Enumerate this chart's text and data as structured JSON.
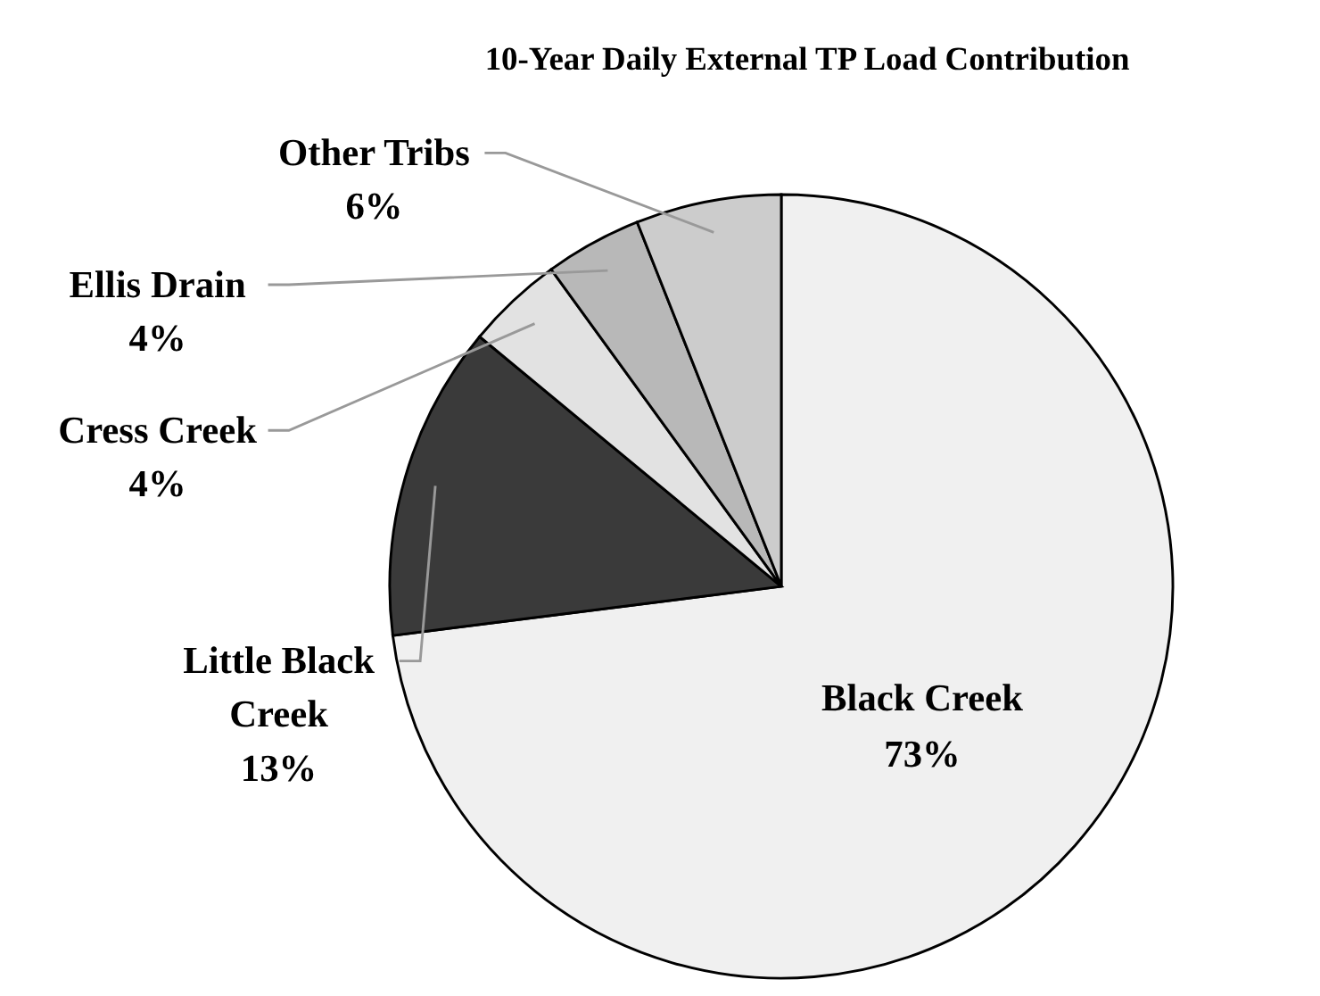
{
  "chart_data": {
    "type": "pie",
    "title": "10-Year Daily External TP Load Contribution",
    "categories": [
      "Black Creek",
      "Little Black Creek",
      "Cress Creek",
      "Ellis Drain",
      "Other Tribs"
    ],
    "values": [
      73,
      13,
      4,
      4,
      6
    ],
    "colors": [
      "#f0f0f0",
      "#3a3a3a",
      "#e2e2e2",
      "#b8b8b8",
      "#cccccc"
    ],
    "value_labels": [
      "73%",
      "13%",
      "4%",
      "4%",
      "6%"
    ]
  }
}
